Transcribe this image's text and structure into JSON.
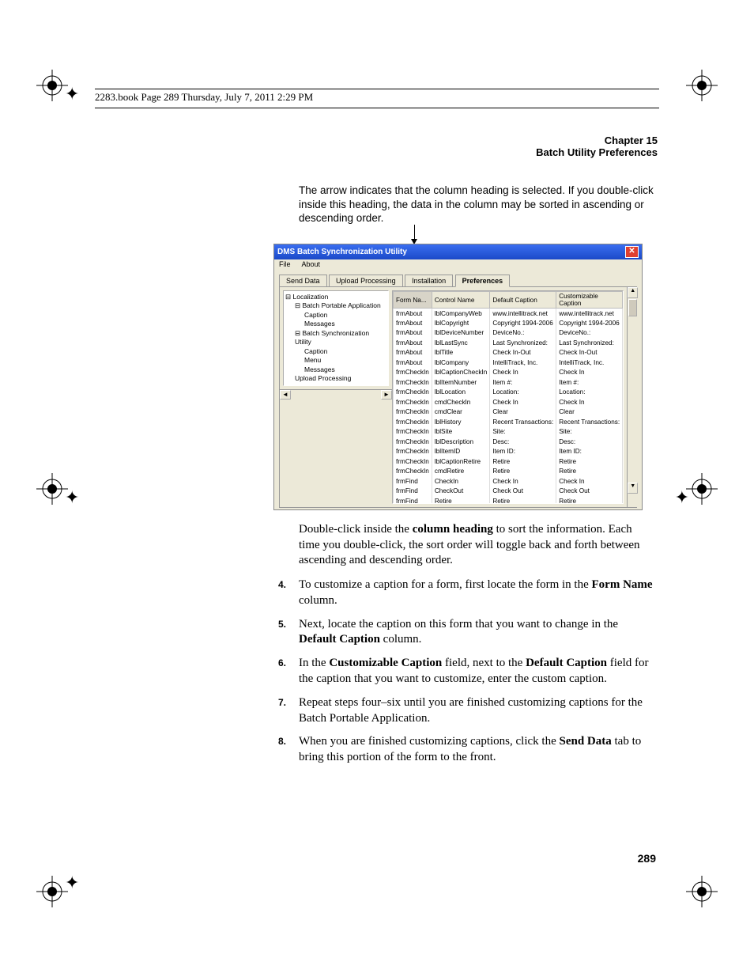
{
  "header": {
    "text": "2283.book  Page 289  Thursday, July 7, 2011  2:29 PM"
  },
  "chapter": {
    "line1": "Chapter 15",
    "line2": "Batch Utility Preferences"
  },
  "callout": "The arrow indicates that the column heading is selected. If you double-click inside this heading, the data in the column may be sorted in ascending or descending order.",
  "window": {
    "title": "DMS Batch Synchronization Utility",
    "menu": {
      "file": "File",
      "about": "About"
    },
    "tabs": {
      "t1": "Send Data",
      "t2": "Upload Processing",
      "t3": "Installation",
      "t4": "Preferences"
    }
  },
  "tree": {
    "n0": "Localization",
    "n1": "Batch Portable Application",
    "n1a": "Caption",
    "n1b": "Messages",
    "n2": "Batch Synchronization Utility",
    "n2a": "Caption",
    "n2b": "Menu",
    "n2c": "Messages",
    "n3": "Upload Processing"
  },
  "columns": {
    "c1": "Form Na...",
    "c2": "Control Name",
    "c3": "Default Caption",
    "c4": "Customizable Caption"
  },
  "rows": [
    {
      "f": "frmAbout",
      "c": "lblCompanyWeb",
      "d": "www.intellitrack.net",
      "u": "www.intellitrack.net"
    },
    {
      "f": "frmAbout",
      "c": "lblCopyright",
      "d": "Copyright 1994-2006",
      "u": "Copyright 1994-2006"
    },
    {
      "f": "frmAbout",
      "c": "lblDeviceNumber",
      "d": "DeviceNo.:",
      "u": "DeviceNo.:"
    },
    {
      "f": "frmAbout",
      "c": "lblLastSync",
      "d": "Last Synchronized:",
      "u": "Last Synchronized:"
    },
    {
      "f": "frmAbout",
      "c": "lblTitle",
      "d": "Check In-Out",
      "u": "Check In-Out"
    },
    {
      "f": "frmAbout",
      "c": "lblCompany",
      "d": "IntelliTrack, Inc.",
      "u": "IntelliTrack, Inc."
    },
    {
      "f": "frmCheckIn",
      "c": "lblCaptionCheckIn",
      "d": "Check In",
      "u": "Check In"
    },
    {
      "f": "frmCheckIn",
      "c": "lblItemNumber",
      "d": "Item #:",
      "u": "Item #:"
    },
    {
      "f": "frmCheckIn",
      "c": "lblLocation",
      "d": "Location:",
      "u": "Location:"
    },
    {
      "f": "frmCheckIn",
      "c": "cmdCheckIn",
      "d": "Check In",
      "u": "Check In"
    },
    {
      "f": "frmCheckIn",
      "c": "cmdClear",
      "d": "Clear",
      "u": "Clear"
    },
    {
      "f": "frmCheckIn",
      "c": "lblHistory",
      "d": "Recent Transactions:",
      "u": "Recent Transactions:"
    },
    {
      "f": "frmCheckIn",
      "c": "lblSite",
      "d": "Site:",
      "u": "Site:"
    },
    {
      "f": "frmCheckIn",
      "c": "lblDescription",
      "d": "Desc:",
      "u": "Desc:"
    },
    {
      "f": "frmCheckIn",
      "c": "lblItemID",
      "d": "Item ID:",
      "u": "Item ID:"
    },
    {
      "f": "frmCheckIn",
      "c": "lblCaptionRetire",
      "d": "Retire",
      "u": "Retire"
    },
    {
      "f": "frmCheckIn",
      "c": "cmdRetire",
      "d": "Retire",
      "u": "Retire"
    },
    {
      "f": "frmFind",
      "c": "CheckIn",
      "d": "Check In",
      "u": "Check In"
    },
    {
      "f": "frmFind",
      "c": "CheckOut",
      "d": "Check Out",
      "u": "Check Out"
    },
    {
      "f": "frmFind",
      "c": "Retire",
      "d": "Retire",
      "u": "Retire"
    }
  ],
  "para": {
    "p1a": "Double-click inside the ",
    "p1b": "column heading",
    "p1c": " to sort the information. Each time you double-click, the sort order will toggle back and forth between ascending and descending order."
  },
  "steps": {
    "s4n": "4.",
    "s4a": "To customize a caption for a form, first locate the form in the ",
    "s4b": "Form Name",
    "s4c": " column.",
    "s5n": "5.",
    "s5a": "Next, locate the caption on this form that you want to change in the ",
    "s5b": "Default Caption",
    "s5c": " column.",
    "s6n": "6.",
    "s6a": "In the ",
    "s6b": "Customizable Caption",
    "s6c": " field, next to the ",
    "s6d": "Default Caption",
    "s6e": " field for the caption that you want to customize, enter the custom caption.",
    "s7n": "7.",
    "s7": "Repeat steps four–six until you are finished customizing captions for the Batch Portable Application.",
    "s8n": "8.",
    "s8a": "When you are finished customizing captions, click the ",
    "s8b": "Send Data",
    "s8c": " tab to bring this portion of the form to the front."
  },
  "pagenum": "289"
}
